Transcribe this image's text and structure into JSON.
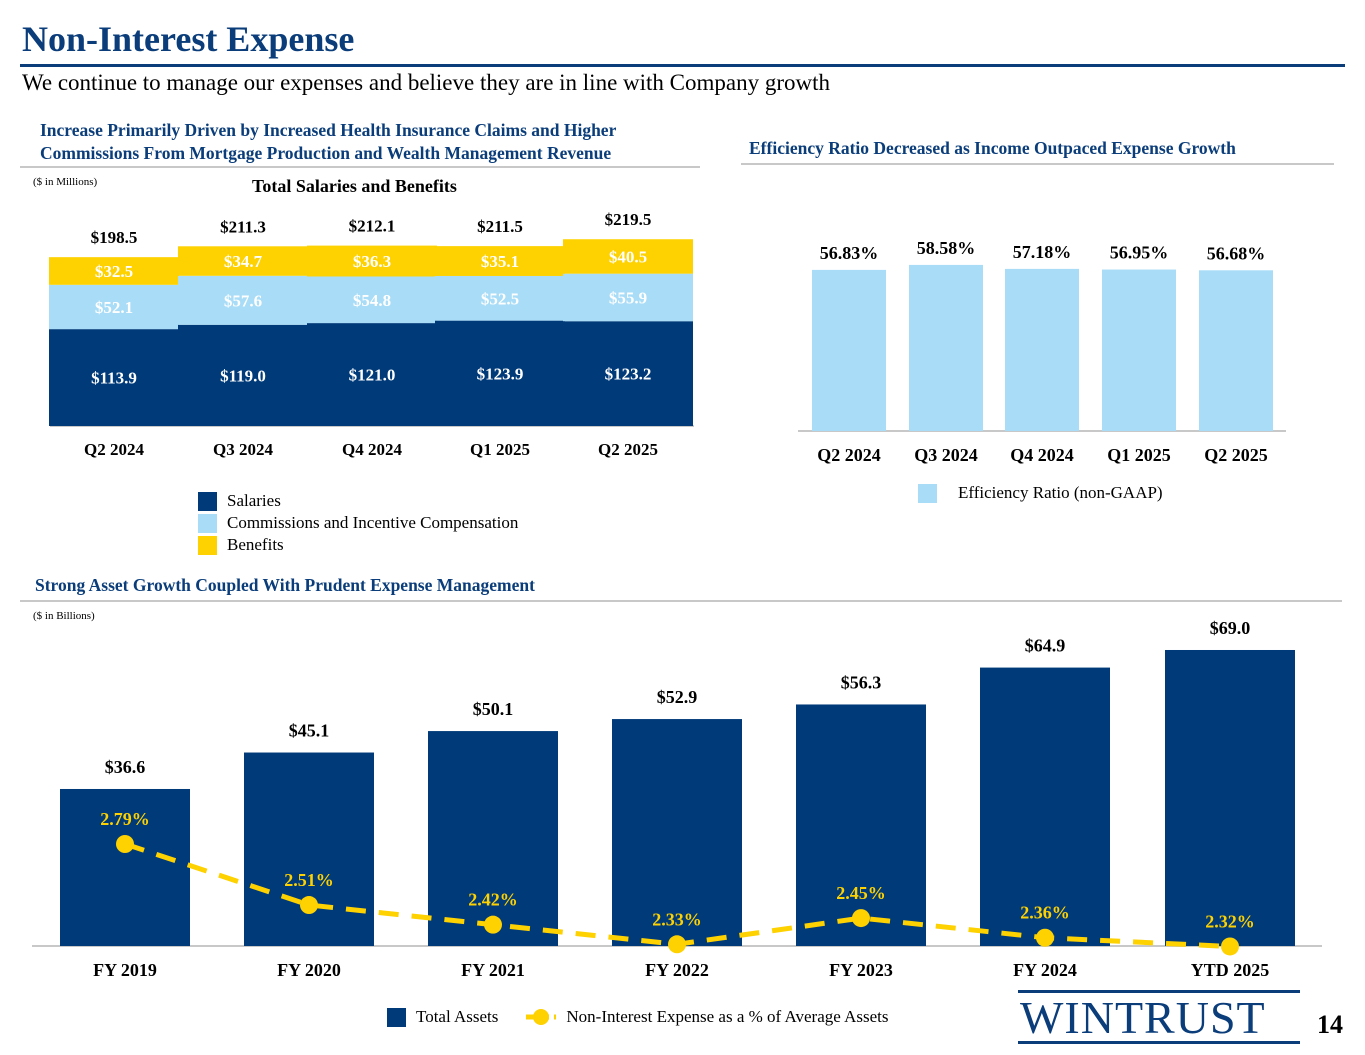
{
  "header": {
    "title": "Non-Interest Expense",
    "subtitle": "We continue to manage our expenses and believe they are in line with Company growth"
  },
  "sections": {
    "salaries": {
      "heading_line1": "Increase Primarily Driven by Increased Health Insurance Claims and Higher",
      "heading_line2": "Commissions From Mortgage Production and Wealth Management Revenue",
      "unit_note": "($ in Millions)"
    },
    "efficiency": {
      "heading": "Efficiency Ratio Decreased as Income Outpaced Expense Growth"
    },
    "assets": {
      "heading": "Strong Asset Growth Coupled With Prudent Expense Management",
      "unit_note": "($ in Billions)"
    }
  },
  "colors": {
    "salaries": "#003a79",
    "commissions": "#a8dcf7",
    "benefits": "#fed100",
    "efficiency": "#a8dcf7",
    "assets": "#003a79",
    "ratio_line": "#fed100",
    "title": "#0a3d7a"
  },
  "chart_data": [
    {
      "type": "bar",
      "stacked": true,
      "title": "Total Salaries and Benefits",
      "categories": [
        "Q2 2024",
        "Q3 2024",
        "Q4 2024",
        "Q1 2025",
        "Q2 2025"
      ],
      "series": [
        {
          "name": "Salaries",
          "values": [
            113.9,
            119.0,
            121.0,
            123.9,
            123.2
          ],
          "labels": [
            "$113.9",
            "$119.0",
            "$121.0",
            "$123.9",
            "$123.2"
          ]
        },
        {
          "name": "Commissions and Incentive Compensation",
          "values": [
            52.1,
            57.6,
            54.8,
            52.5,
            55.9
          ],
          "labels": [
            "$52.1",
            "$57.6",
            "$54.8",
            "$52.5",
            "$55.9"
          ]
        },
        {
          "name": "Benefits",
          "values": [
            32.5,
            34.7,
            36.3,
            35.1,
            40.5
          ],
          "labels": [
            "$32.5",
            "$34.7",
            "$36.3",
            "$35.1",
            "$40.5"
          ]
        }
      ],
      "totals": [
        198.5,
        211.3,
        212.1,
        211.5,
        219.5
      ],
      "total_labels": [
        "$198.5",
        "$211.3",
        "$212.1",
        "$211.5",
        "$219.5"
      ],
      "legend_position": "bottom"
    },
    {
      "type": "bar",
      "categories": [
        "Q2 2024",
        "Q3 2024",
        "Q4 2024",
        "Q1 2025",
        "Q2 2025"
      ],
      "series": [
        {
          "name": "Efficiency Ratio (non-GAAP)",
          "values": [
            56.83,
            58.58,
            57.18,
            56.95,
            56.68
          ],
          "labels": [
            "56.83%",
            "58.58%",
            "57.18%",
            "56.95%",
            "56.68%"
          ]
        }
      ],
      "legend_position": "bottom"
    },
    {
      "type": "bar",
      "categories": [
        "FY 2019",
        "FY 2020",
        "FY 2021",
        "FY 2022",
        "FY 2023",
        "FY 2024",
        "YTD 2025"
      ],
      "series": [
        {
          "name": "Total Assets",
          "type": "bar",
          "values": [
            36.6,
            45.1,
            50.1,
            52.9,
            56.3,
            64.9,
            69.0
          ],
          "labels": [
            "$36.6",
            "$45.1",
            "$50.1",
            "$52.9",
            "$56.3",
            "$64.9",
            "$69.0"
          ]
        },
        {
          "name": "Non-Interest Expense as a % of Average Assets",
          "type": "line",
          "values": [
            2.79,
            2.51,
            2.42,
            2.33,
            2.45,
            2.36,
            2.32
          ],
          "labels": [
            "2.79%",
            "2.51%",
            "2.42%",
            "2.33%",
            "2.45%",
            "2.36%",
            "2.32%"
          ]
        }
      ],
      "legend_position": "bottom"
    }
  ],
  "footer": {
    "logo_text": "WINTRUST",
    "page_number": "14"
  }
}
